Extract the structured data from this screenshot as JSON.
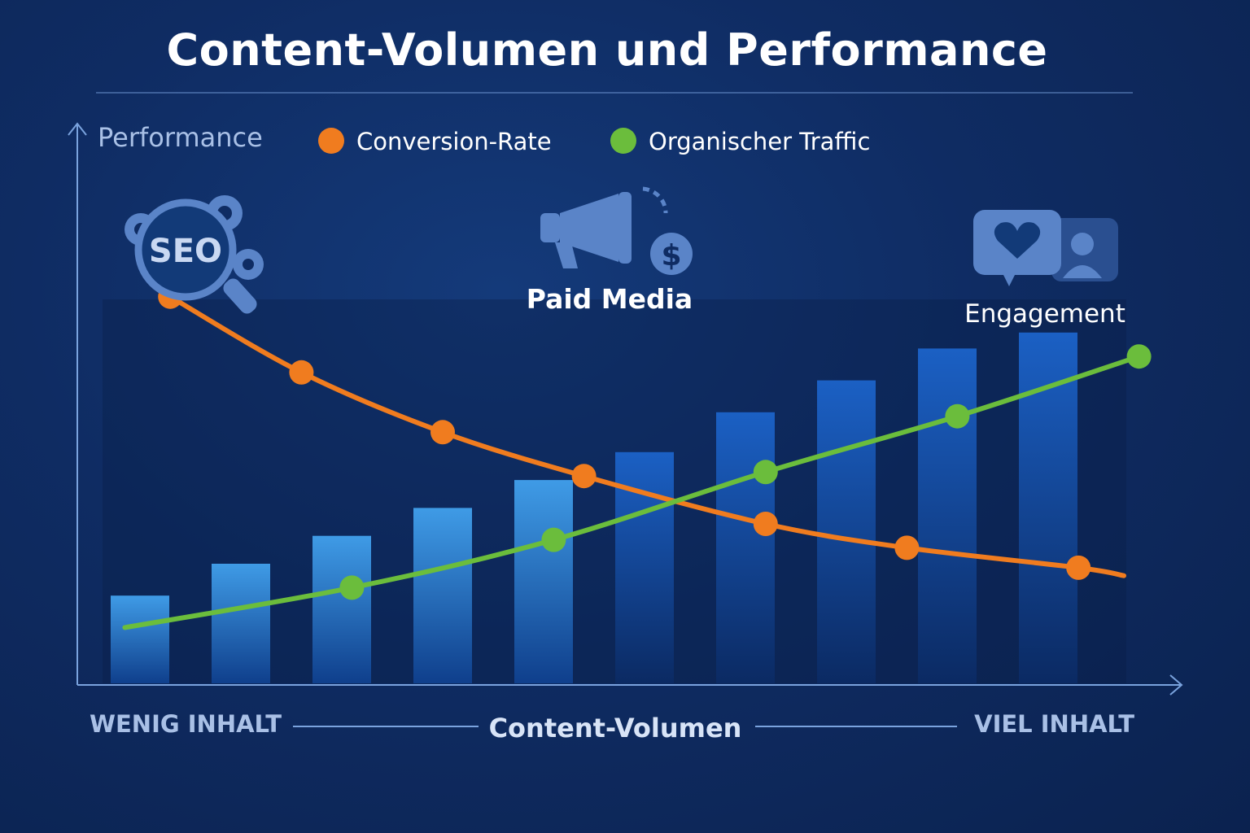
{
  "title": "Content-Volumen und Performance",
  "colors": {
    "conversion": "#f07c1f",
    "traffic": "#6bbd3c",
    "bar_light": "#3f9be6",
    "bar_dark": "#1656b3",
    "axis": "#7aa3de"
  },
  "icons": [
    {
      "name": "seo-icon",
      "label": "SEO"
    },
    {
      "name": "megaphone-icon",
      "label": "Paid Media"
    },
    {
      "name": "engagement-icon",
      "label": "Engagement"
    }
  ],
  "chart_data": {
    "type": "bar",
    "ylabel": "Performance",
    "xlabel": "Content-Volumen",
    "x_start_label": "WENIG INHALT",
    "x_end_label": "VIEL INHALT",
    "ylim": [
      0,
      100
    ],
    "legend_position": "top",
    "bars": {
      "values": [
        22,
        30,
        37,
        44,
        51,
        58,
        68,
        76,
        84,
        88
      ]
    },
    "series": [
      {
        "name": "Conversion-Rate",
        "type": "line",
        "x": [
          0.3,
          1.6,
          3.0,
          4.4,
          6.2,
          7.6,
          9.3
        ],
        "values": [
          97,
          78,
          63,
          52,
          40,
          34,
          29
        ]
      },
      {
        "name": "Organischer Traffic",
        "type": "line",
        "x": [
          2.1,
          4.1,
          6.2,
          8.1,
          9.9
        ],
        "values": [
          24,
          36,
          53,
          67,
          82
        ]
      }
    ]
  }
}
